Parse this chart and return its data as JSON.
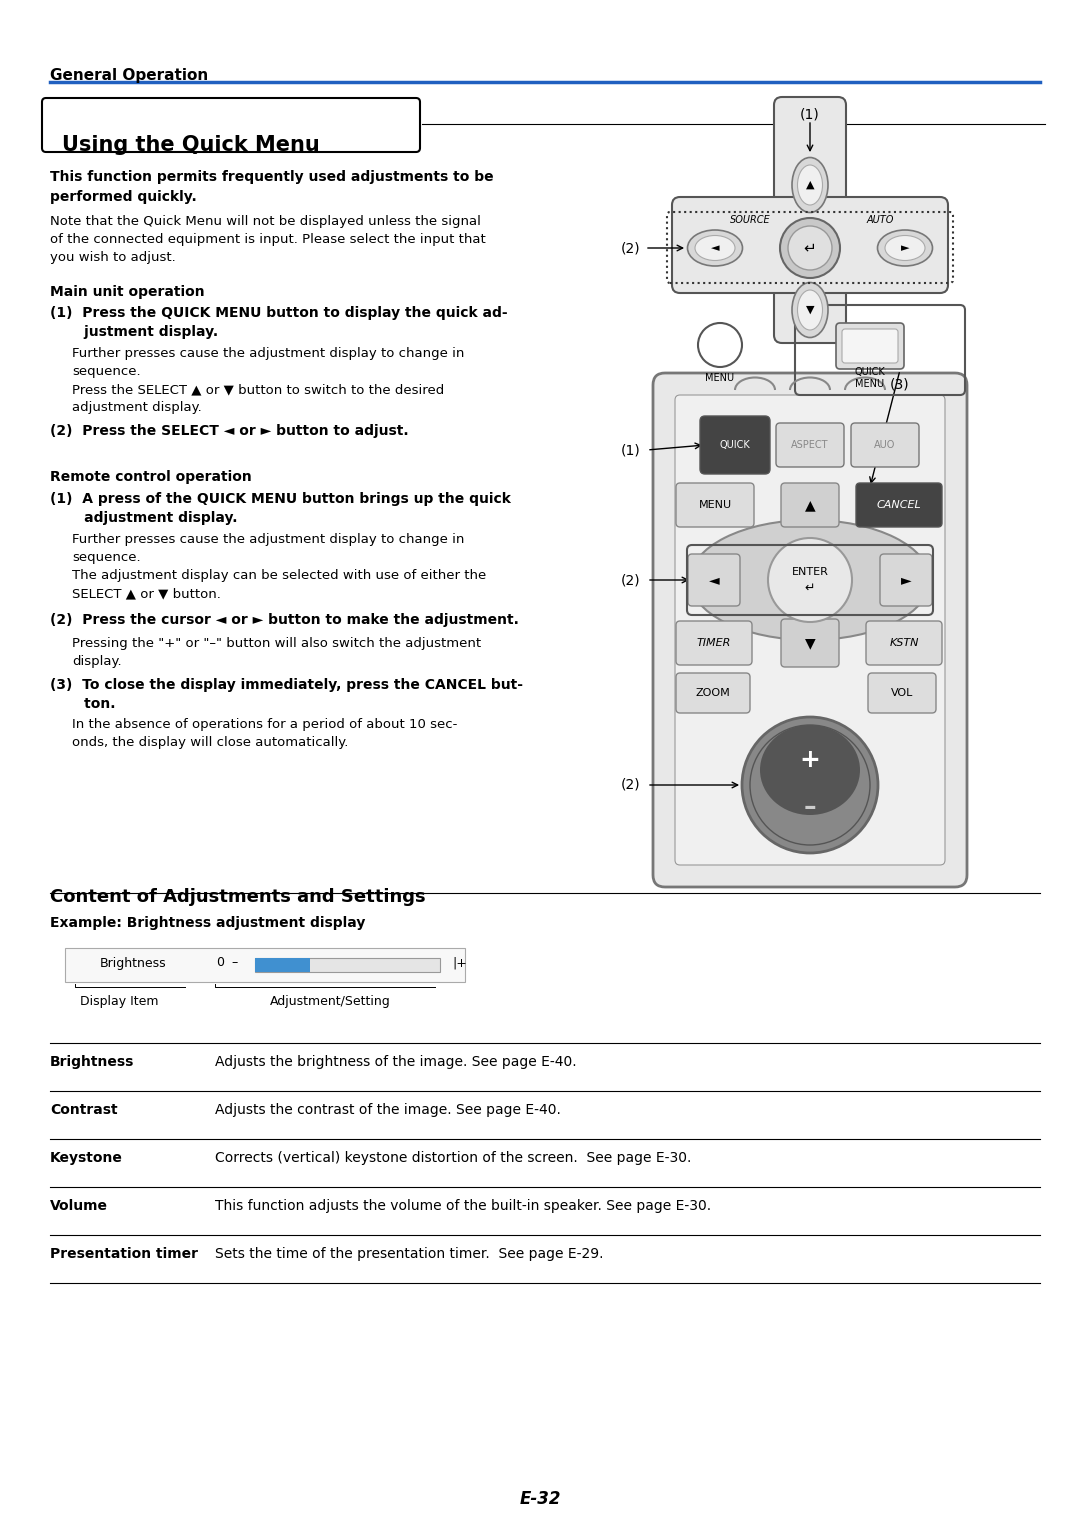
{
  "page_bg": "#ffffff",
  "header_text": "General Operation",
  "header_line_color": "#2060c0",
  "title_box_text": "Using the Quick Menu",
  "content_title": "Content of Adjustments and Settings",
  "example_label": "Example: Brightness adjustment display",
  "brightness_label": "Brightness",
  "brightness_value": "0",
  "display_item_label": "Display Item",
  "adjustment_label": "Adjustment/Setting",
  "table_rows": [
    [
      "Brightness",
      "Adjusts the brightness of the image. See page E-40."
    ],
    [
      "Contrast",
      "Adjusts the contrast of the image. See page E-40."
    ],
    [
      "Keystone",
      "Corrects (vertical) keystone distortion of the screen.  See page E-30."
    ],
    [
      "Volume",
      "This function adjusts the volume of the built-in speaker. See page E-30."
    ],
    [
      "Presentation timer",
      "Sets the time of the presentation timer.  See page E-29."
    ]
  ],
  "page_number": "E-32",
  "slider_color": "#4090d0"
}
